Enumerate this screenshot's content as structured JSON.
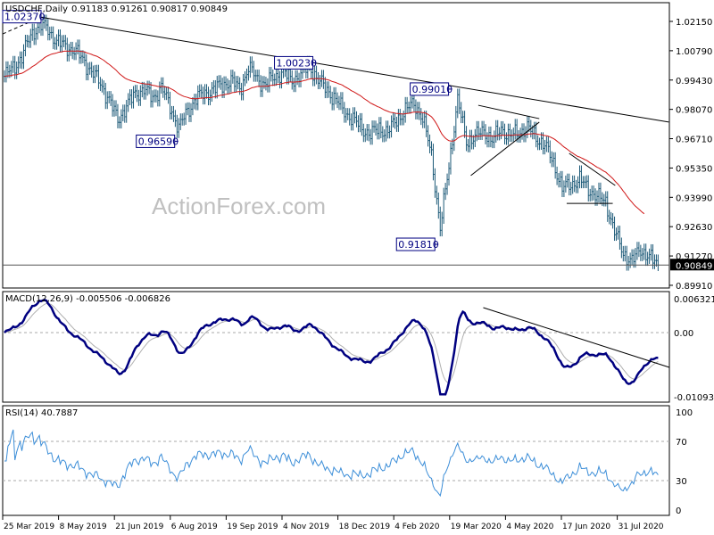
{
  "header": {
    "symbol_timeframe": "USDCHF,Daily",
    "ohlc": "0.91183 0.91261 0.90817 0.90849"
  },
  "watermark": "ActionForex.com",
  "chart_data": {
    "type": "ohlc-bar",
    "symbol": "USDCHF",
    "timeframe": "Daily",
    "colors": {
      "bars": "#1d5a78",
      "moving_average": "#d01818",
      "macd": "#000080",
      "signal": "#b0b0b0",
      "rsi": "#3c8ed8",
      "trendline": "#000000",
      "label_box": "#000080"
    },
    "price_axis": {
      "ylim": [
        0.8985,
        1.0305
      ],
      "ticks": [
        "1.02150",
        "1.00790",
        "0.99430",
        "0.98070",
        "0.96710",
        "0.95350",
        "0.93990",
        "0.92630",
        "0.91270",
        "0.89910"
      ]
    },
    "current_price": "0.90849",
    "x_ticks": [
      "25 Mar 2019",
      "8 May 2019",
      "21 Jun 2019",
      "6 Aug 2019",
      "19 Sep 2019",
      "4 Nov 2019",
      "18 Dec 2019",
      "4 Feb 2020",
      "19 Mar 2020",
      "4 May 2020",
      "17 Jun 2020",
      "31 Jul 2020"
    ],
    "weekly_closes": {
      "start": "2019-03-25",
      "frequency": "weekly",
      "values": [
        0.996,
        1.0,
        1.005,
        1.015,
        1.02,
        1.018,
        1.012,
        1.01,
        1.008,
        1.004,
        0.998,
        0.993,
        0.985,
        0.976,
        0.982,
        0.988,
        0.99,
        0.986,
        0.991,
        0.982,
        0.972,
        0.98,
        0.986,
        0.988,
        0.99,
        0.992,
        0.994,
        0.99,
        1.0,
        0.995,
        0.992,
        0.996,
        0.998,
        0.994,
        0.997,
        1.001,
        0.994,
        0.99,
        0.985,
        0.98,
        0.976,
        0.972,
        0.969,
        0.972,
        0.97,
        0.976,
        0.98,
        0.984,
        0.976,
        0.96,
        0.925,
        0.955,
        0.985,
        0.966,
        0.968,
        0.971,
        0.966,
        0.972,
        0.968,
        0.97,
        0.972,
        0.968,
        0.964,
        0.956,
        0.944,
        0.946,
        0.948,
        0.944,
        0.94,
        0.938,
        0.924,
        0.914,
        0.91,
        0.916,
        0.912,
        0.9085
      ]
    },
    "annotations": [
      {
        "label": "1.02370",
        "date": "2019-04-22",
        "price": 1.0237
      },
      {
        "label": "1.00230",
        "date": "2019-12-02",
        "price": 1.0023
      },
      {
        "label": "0.99010",
        "date": "2020-03-20",
        "price": 0.9901
      },
      {
        "label": "0.96590",
        "date": "2019-08-13",
        "price": 0.9659
      },
      {
        "label": "0.91810",
        "date": "2020-03-09",
        "price": 0.9181
      }
    ],
    "trendlines": [
      {
        "from": [
          "2019-04-22",
          1.0237
        ],
        "to": [
          "2020-09-10",
          0.9748
        ],
        "style": "solid"
      },
      {
        "from": [
          "2019-03-25",
          1.0157
        ],
        "to": [
          "2019-04-20",
          1.0223
        ],
        "style": "dashed"
      },
      {
        "from": [
          "2020-04-10",
          0.9826
        ],
        "to": [
          "2020-05-29",
          0.9764
        ],
        "style": "solid"
      },
      {
        "from": [
          "2020-04-04",
          0.95
        ],
        "to": [
          "2020-05-29",
          0.9748
        ],
        "style": "solid"
      },
      {
        "from": [
          "2020-06-22",
          0.9603
        ],
        "to": [
          "2020-07-29",
          0.9454
        ],
        "style": "solid"
      },
      {
        "from": [
          "2020-06-20",
          0.9371
        ],
        "to": [
          "2020-07-27",
          0.9371
        ],
        "style": "solid"
      }
    ],
    "horizontal_lines": [
      0.90849
    ],
    "macd": {
      "label": "MACD(12,26,9) -0.005506 -0.006826",
      "ylim": [
        -0.010939,
        0.006321
      ],
      "ticks": [
        "0.006321",
        "0.00",
        "-0.010939"
      ],
      "trendline": {
        "from": [
          "2020-04-14",
          0.00442
        ],
        "to": [
          "2020-09-10",
          -0.00616
        ]
      }
    },
    "rsi": {
      "label": "RSI(14) 40.7887",
      "ylim": [
        0,
        100
      ],
      "ticks": [
        "100",
        "70",
        "30",
        "0"
      ],
      "levels": [
        70,
        30
      ]
    }
  }
}
